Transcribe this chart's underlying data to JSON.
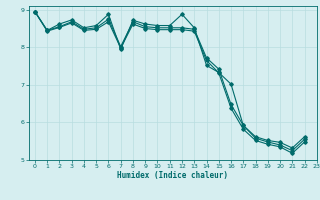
{
  "xlabel": "Humidex (Indice chaleur)",
  "bg_color": "#d6eef0",
  "line_color": "#006b6b",
  "grid_color": "#b8dde0",
  "xlim": [
    -0.5,
    23
  ],
  "ylim": [
    5,
    9.1
  ],
  "xticks": [
    0,
    1,
    2,
    3,
    4,
    5,
    6,
    7,
    8,
    9,
    10,
    11,
    12,
    13,
    14,
    15,
    16,
    17,
    18,
    19,
    20,
    21,
    22,
    23
  ],
  "yticks": [
    5,
    6,
    7,
    8,
    9
  ],
  "curve1_x": [
    0,
    1,
    2,
    3,
    4,
    5,
    6,
    7,
    8,
    9,
    10,
    11,
    12,
    13,
    14,
    15,
    16,
    17,
    18,
    19,
    20,
    21,
    22
  ],
  "curve1_y": [
    8.95,
    8.45,
    8.62,
    8.73,
    8.52,
    8.58,
    8.88,
    7.95,
    8.72,
    8.62,
    8.58,
    8.58,
    8.88,
    8.52,
    7.52,
    7.33,
    7.02,
    5.92,
    5.62,
    5.52,
    5.47,
    5.32,
    5.62
  ],
  "curve2_x": [
    0,
    1,
    2,
    3,
    4,
    5,
    6,
    7,
    8,
    9,
    10,
    11,
    12,
    13,
    14,
    15,
    16,
    17,
    18,
    19,
    20,
    21,
    22
  ],
  "curve2_y": [
    8.95,
    8.45,
    8.55,
    8.68,
    8.48,
    8.52,
    8.75,
    8.02,
    8.68,
    8.55,
    8.52,
    8.52,
    8.52,
    8.48,
    7.72,
    7.42,
    6.48,
    5.92,
    5.58,
    5.48,
    5.4,
    5.25,
    5.55
  ],
  "curve3_x": [
    0,
    1,
    2,
    3,
    4,
    5,
    6,
    7,
    8,
    9,
    10,
    11,
    12,
    13,
    14,
    15,
    16,
    17,
    18,
    19,
    20,
    21,
    22
  ],
  "curve3_y": [
    8.95,
    8.43,
    8.53,
    8.65,
    8.45,
    8.48,
    8.68,
    7.98,
    8.62,
    8.5,
    8.47,
    8.47,
    8.47,
    8.43,
    7.65,
    7.32,
    6.38,
    5.82,
    5.52,
    5.42,
    5.35,
    5.18,
    5.48
  ]
}
